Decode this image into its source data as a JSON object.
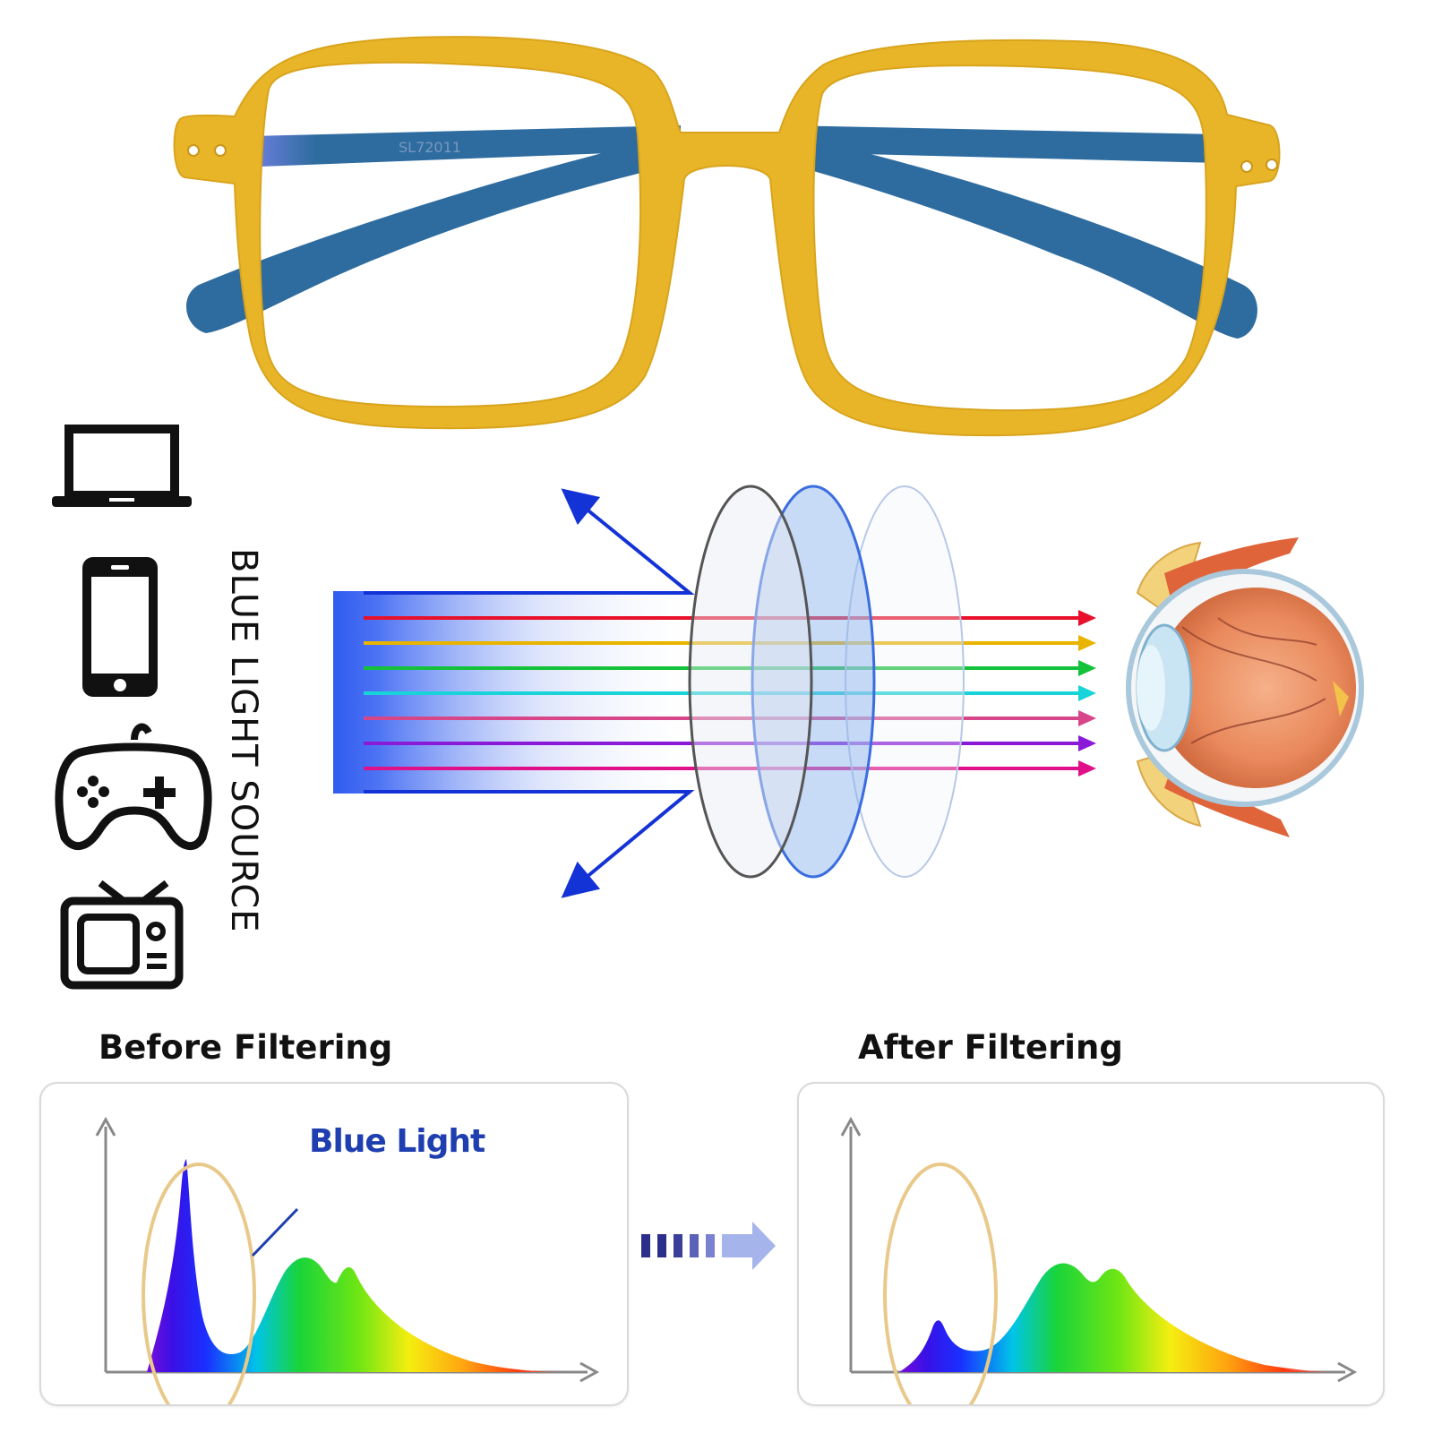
{
  "frame": {
    "model_text": "SL72011",
    "frame_color": "#E8B529",
    "temple_color": "#2E6C9F"
  },
  "devices": [
    {
      "name": "laptop-icon"
    },
    {
      "name": "smartphone-icon"
    },
    {
      "name": "gamepad-icon"
    },
    {
      "name": "television-icon"
    }
  ],
  "source_label": "BLUE LIGHT SOURCE",
  "rays": {
    "blocked_color": "#1433d6",
    "passed_colors": [
      "#e8102a",
      "#e8b400",
      "#13c23a",
      "#18d4d8",
      "#d8468a",
      "#8a1ad8",
      "#e0108a"
    ]
  },
  "lens_layers": [
    "clear-lens",
    "blue-filter-lens",
    "outer-lens"
  ],
  "spectrum": {
    "before_title": "Before Filtering",
    "after_title": "After Filtering",
    "callout_label": "Blue Light",
    "highlight_color": "#E9C98A"
  }
}
